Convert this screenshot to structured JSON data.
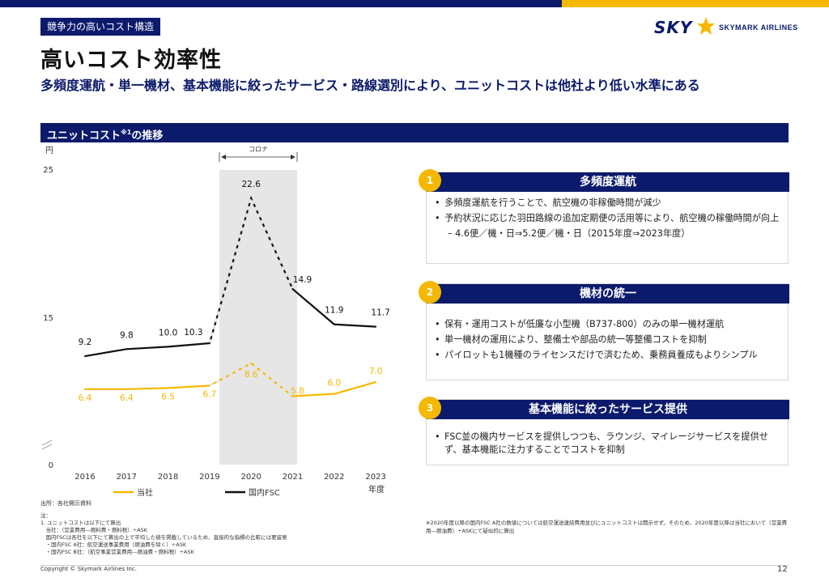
{
  "section_tag": "競争力の高いコスト構造",
  "title": "高いコスト効率性",
  "subtitle": "多頻度運航・単一機材、基本機能に絞ったサービス・路線選別により、ユニットコストは他社より低い水準にある",
  "logo": {
    "mark": "SKY",
    "name": "SKYMARK AIRLINES"
  },
  "chart_header": {
    "label": "ユニットコスト",
    "sup": "※1",
    "suffix": "の推移"
  },
  "chart_data": {
    "type": "line",
    "ylabel": "円",
    "xlabel": "年度",
    "ylim": [
      0,
      25
    ],
    "yticks": [
      "0",
      "15",
      "25"
    ],
    "x": [
      "2016",
      "2017",
      "2018",
      "2019",
      "2020",
      "2021",
      "2022",
      "2023"
    ],
    "covid_label": "コロナ",
    "series": [
      {
        "name": "当社",
        "color": "#f5b800",
        "values": [
          6.4,
          6.4,
          6.5,
          6.7,
          8.6,
          5.8,
          6.0,
          7.0
        ],
        "labels": [
          "6.4",
          "6.4",
          "6.5",
          "6.7",
          "8.6",
          "5.8",
          "6.0",
          "7.0"
        ]
      },
      {
        "name": "国内FSC",
        "color": "#111111",
        "values": [
          9.2,
          9.8,
          10.0,
          10.3,
          22.6,
          14.9,
          11.9,
          11.7
        ],
        "labels": [
          "9.2",
          "9.8",
          "10.0",
          "10.3",
          "22.6",
          "14.9",
          "11.9",
          "11.7"
        ]
      }
    ]
  },
  "cards": [
    {
      "num": "1",
      "title": "多頻度運航",
      "bullets": [
        "多頻度運航を行うことで、航空機の非稼働時間が減少",
        "予約状況に応じた羽田路線の追加定期便の活用等により、航空機の稼働時間が向上"
      ],
      "sub": "– 4.6便／機・日⇒5.2便／機・日（2015年度⇒2023年度）"
    },
    {
      "num": "2",
      "title": "機材の統一",
      "bullets": [
        "保有・運用コストが低廉な小型機（B737-800）のみの単一機材運航",
        "単一機材の運用により、整備士や部品の統一等整備コストを抑制",
        "パイロットも1機種のライセンスだけで済むため、乗務員養成もよりシンプル"
      ]
    },
    {
      "num": "3",
      "title": "基本機能に絞ったサービス提供",
      "bullets": [
        "FSC並の機内サービスを提供しつつも、ラウンジ、マイレージサービスを提供せず、基本機能に注力することでコストを抑制"
      ]
    }
  ],
  "notes": {
    "source": "出所：各社開示資料",
    "lines": [
      "注：",
      "1. ユニットコストは以下にて算出",
      "　当社：（営業費用―燃料費・燃料税）÷ASK",
      "　国内FSCは各社を以下にて算出の上で平均した値を掲載しているため、直接的な指標の比較には要留意",
      "　・国内FSC A社：航空運送事業費用（燃油費を除く）÷ASK",
      "　・国内FSC B社：（航空事業営業費用―燃油費・燃料税）÷ASK"
    ]
  },
  "right_note": "※2020年度以降の国内FSC A社の数値については航空運送連結費用並びにユニットコストは開示せず。そのため、2020年度以降は当社において（営業費用―燃油費）÷ASKにて疑似的に算出",
  "copyright": "Copyright © Skymark Airlines Inc.",
  "page_number": "12"
}
